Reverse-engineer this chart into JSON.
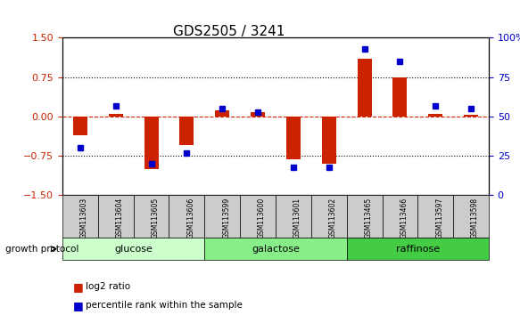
{
  "title": "GDS2505 / 3241",
  "samples": [
    "GSM113603",
    "GSM113604",
    "GSM113605",
    "GSM113606",
    "GSM113599",
    "GSM113600",
    "GSM113601",
    "GSM113602",
    "GSM113465",
    "GSM113466",
    "GSM113597",
    "GSM113598"
  ],
  "log2_ratio": [
    -0.35,
    0.05,
    -1.0,
    -0.55,
    0.12,
    0.08,
    -0.82,
    -0.9,
    1.1,
    0.75,
    0.05,
    0.04
  ],
  "percentile_rank": [
    30,
    57,
    20,
    27,
    55,
    53,
    18,
    18,
    93,
    85,
    57,
    55
  ],
  "groups": [
    {
      "label": "glucose",
      "start": 0,
      "end": 4,
      "color": "#ccffcc"
    },
    {
      "label": "galactose",
      "start": 4,
      "end": 8,
      "color": "#88ee88"
    },
    {
      "label": "raffinose",
      "start": 8,
      "end": 12,
      "color": "#44cc44"
    }
  ],
  "bar_color": "#cc2200",
  "dot_color": "#0000cc",
  "ylim_left": [
    -1.5,
    1.5
  ],
  "yticks_left": [
    -1.5,
    -0.75,
    0,
    0.75,
    1.5
  ],
  "yticks_right": [
    0,
    25,
    50,
    75,
    100
  ],
  "hline_y": [
    0.75,
    0,
    -0.75
  ],
  "hline_styles": [
    "dotted",
    "dashed",
    "dotted"
  ],
  "background_color": "#ffffff",
  "legend_items": [
    {
      "label": "log2 ratio",
      "color": "#cc2200",
      "marker": "s"
    },
    {
      "label": "percentile rank within the sample",
      "color": "#0000cc",
      "marker": "s"
    }
  ]
}
